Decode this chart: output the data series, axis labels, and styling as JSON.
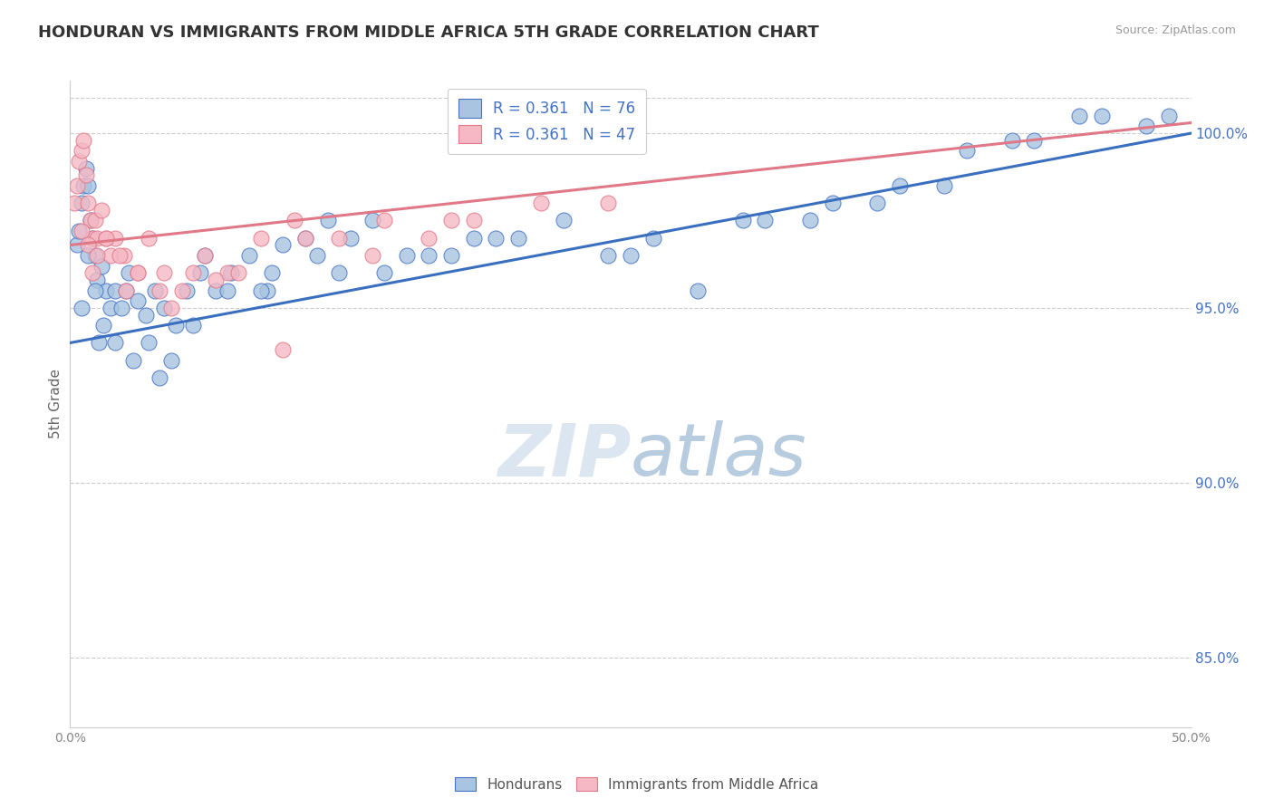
{
  "title": "HONDURAN VS IMMIGRANTS FROM MIDDLE AFRICA 5TH GRADE CORRELATION CHART",
  "source": "Source: ZipAtlas.com",
  "ylabel": "5th Grade",
  "xlim": [
    0.0,
    50.0
  ],
  "ylim": [
    83.0,
    101.5
  ],
  "xticks": [
    0.0,
    10.0,
    20.0,
    30.0,
    40.0,
    50.0
  ],
  "xticklabels": [
    "0.0%",
    "",
    "",
    "",
    "",
    "50.0%"
  ],
  "yticks": [
    85.0,
    90.0,
    95.0,
    100.0
  ],
  "yticklabels": [
    "85.0%",
    "90.0%",
    "95.0%",
    "100.0%"
  ],
  "top_dashed_y": 101.0,
  "blue_R": 0.361,
  "blue_N": 76,
  "pink_R": 0.361,
  "pink_N": 47,
  "blue_fill": "#a8c4e0",
  "pink_fill": "#f5b8c4",
  "blue_edge": "#4472c4",
  "pink_edge": "#e07888",
  "blue_line": "#3a6fbf",
  "pink_line": "#e07888",
  "legend_color": "#4472c4",
  "background": "#ffffff",
  "grid_color": "#cccccc",
  "title_color": "#333333",
  "watermark_color": "#dce6f0",
  "blue_line_x0": 0.0,
  "blue_line_y0": 94.0,
  "blue_line_x1": 50.0,
  "blue_line_y1": 100.0,
  "pink_line_x0": 0.0,
  "pink_line_y0": 96.8,
  "pink_line_x1": 50.0,
  "pink_line_y1": 100.3,
  "blue_scatter_x": [
    0.3,
    0.4,
    0.5,
    0.6,
    0.7,
    0.8,
    0.9,
    1.0,
    1.1,
    1.2,
    1.4,
    1.6,
    1.8,
    2.0,
    2.3,
    2.6,
    3.0,
    3.4,
    3.8,
    4.2,
    4.7,
    5.2,
    5.8,
    6.5,
    7.2,
    8.0,
    8.8,
    9.5,
    10.5,
    11.5,
    12.5,
    13.5,
    15.0,
    17.0,
    19.0,
    22.0,
    25.0,
    28.0,
    31.0,
    34.0,
    37.0,
    40.0,
    43.0,
    46.0,
    49.0,
    0.5,
    0.8,
    1.1,
    1.5,
    2.0,
    2.8,
    3.5,
    4.5,
    5.5,
    7.0,
    9.0,
    11.0,
    14.0,
    18.0,
    24.0,
    30.0,
    36.0,
    42.0,
    48.0,
    6.0,
    8.5,
    12.0,
    16.0,
    20.0,
    26.0,
    33.0,
    39.0,
    45.0,
    1.3,
    2.5,
    4.0
  ],
  "blue_scatter_y": [
    96.8,
    97.2,
    98.0,
    98.5,
    99.0,
    98.5,
    97.5,
    97.0,
    96.5,
    95.8,
    96.2,
    95.5,
    95.0,
    95.5,
    95.0,
    96.0,
    95.2,
    94.8,
    95.5,
    95.0,
    94.5,
    95.5,
    96.0,
    95.5,
    96.0,
    96.5,
    95.5,
    96.8,
    97.0,
    97.5,
    97.0,
    97.5,
    96.5,
    96.5,
    97.0,
    97.5,
    96.5,
    95.5,
    97.5,
    98.0,
    98.5,
    99.5,
    99.8,
    100.5,
    100.5,
    95.0,
    96.5,
    95.5,
    94.5,
    94.0,
    93.5,
    94.0,
    93.5,
    94.5,
    95.5,
    96.0,
    96.5,
    96.0,
    97.0,
    96.5,
    97.5,
    98.0,
    99.8,
    100.2,
    96.5,
    95.5,
    96.0,
    96.5,
    97.0,
    97.0,
    97.5,
    98.5,
    100.5,
    94.0,
    95.5,
    93.0
  ],
  "pink_scatter_x": [
    0.2,
    0.3,
    0.4,
    0.5,
    0.6,
    0.7,
    0.8,
    0.9,
    1.0,
    1.1,
    1.2,
    1.4,
    1.6,
    1.8,
    2.0,
    2.4,
    3.0,
    3.5,
    4.2,
    5.0,
    6.0,
    7.0,
    8.5,
    10.0,
    12.0,
    14.0,
    17.0,
    21.0,
    0.5,
    0.8,
    1.2,
    1.6,
    2.2,
    3.0,
    4.0,
    5.5,
    7.5,
    10.5,
    13.5,
    18.0,
    24.0,
    1.0,
    2.5,
    4.5,
    6.5,
    9.5,
    16.0
  ],
  "pink_scatter_y": [
    98.0,
    98.5,
    99.2,
    99.5,
    99.8,
    98.8,
    98.0,
    97.5,
    97.0,
    97.5,
    97.0,
    97.8,
    97.0,
    96.5,
    97.0,
    96.5,
    96.0,
    97.0,
    96.0,
    95.5,
    96.5,
    96.0,
    97.0,
    97.5,
    97.0,
    97.5,
    97.5,
    98.0,
    97.2,
    96.8,
    96.5,
    97.0,
    96.5,
    96.0,
    95.5,
    96.0,
    96.0,
    97.0,
    96.5,
    97.5,
    98.0,
    96.0,
    95.5,
    95.0,
    95.8,
    93.8,
    97.0
  ]
}
